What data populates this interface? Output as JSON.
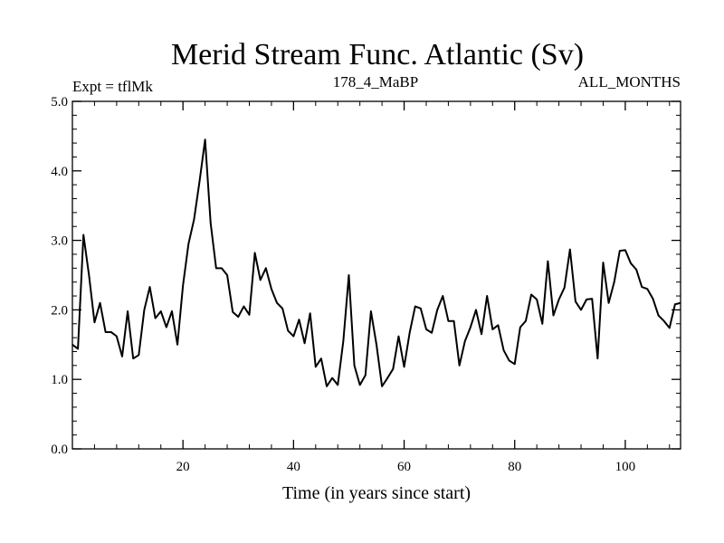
{
  "chart_data": {
    "type": "line",
    "title": "Merid Stream Func. Atlantic (Sv)",
    "subtitle_left": "Expt = tflMk",
    "subtitle_center": "178_4_MaBP",
    "subtitle_right": "ALL_MONTHS",
    "xlabel": "Time (in years since start)",
    "ylabel": "",
    "xlim": [
      0,
      110
    ],
    "ylim": [
      0.0,
      5.0
    ],
    "xticks": [
      20,
      40,
      60,
      80,
      100
    ],
    "xtick_labels": [
      "20",
      "40",
      "60",
      "80",
      "100"
    ],
    "yticks": [
      0.0,
      1.0,
      2.0,
      3.0,
      4.0,
      5.0
    ],
    "ytick_labels": [
      "0.0",
      "1.0",
      "2.0",
      "3.0",
      "4.0",
      "5.0"
    ],
    "grid": false,
    "series": [
      {
        "name": "Merid Stream Func. Atlantic",
        "color": "#000000",
        "x": [
          0,
          1,
          2,
          3,
          4,
          5,
          6,
          7,
          8,
          9,
          10,
          11,
          12,
          13,
          14,
          15,
          16,
          17,
          18,
          19,
          20,
          21,
          22,
          23,
          24,
          25,
          26,
          27,
          28,
          29,
          30,
          31,
          32,
          33,
          34,
          35,
          36,
          37,
          38,
          39,
          40,
          41,
          42,
          43,
          44,
          45,
          46,
          47,
          48,
          49,
          50,
          51,
          52,
          53,
          54,
          55,
          56,
          57,
          58,
          59,
          60,
          61,
          62,
          63,
          64,
          65,
          66,
          67,
          68,
          69,
          70,
          71,
          72,
          73,
          74,
          75,
          76,
          77,
          78,
          79,
          80,
          81,
          82,
          83,
          84,
          85,
          86,
          87,
          88,
          89,
          90,
          91,
          92,
          93,
          94,
          95,
          96,
          97,
          98,
          99,
          100,
          101,
          102,
          103,
          104,
          105,
          106,
          107,
          108,
          109,
          110
        ],
        "values": [
          1.5,
          1.44,
          3.08,
          2.5,
          1.82,
          2.1,
          1.68,
          1.68,
          1.62,
          1.33,
          1.98,
          1.3,
          1.35,
          2.0,
          2.33,
          1.88,
          1.98,
          1.75,
          1.98,
          1.5,
          2.35,
          2.95,
          3.3,
          3.85,
          4.45,
          3.25,
          2.6,
          2.6,
          2.5,
          1.97,
          1.9,
          2.05,
          1.93,
          2.82,
          2.43,
          2.6,
          2.3,
          2.1,
          2.02,
          1.7,
          1.62,
          1.86,
          1.52,
          1.95,
          1.18,
          1.3,
          0.9,
          1.02,
          0.92,
          1.55,
          2.5,
          1.2,
          0.92,
          1.06,
          1.98,
          1.5,
          0.9,
          1.02,
          1.15,
          1.62,
          1.18,
          1.67,
          2.05,
          2.02,
          1.72,
          1.67,
          2.0,
          2.2,
          1.84,
          1.84,
          1.2,
          1.55,
          1.75,
          2.0,
          1.65,
          2.2,
          1.72,
          1.78,
          1.42,
          1.27,
          1.22,
          1.75,
          1.84,
          2.22,
          2.15,
          1.8,
          2.7,
          1.92,
          2.15,
          2.32,
          2.87,
          2.12,
          2.0,
          2.15,
          2.16,
          1.3,
          2.68,
          2.1,
          2.4,
          2.85,
          2.86,
          2.67,
          2.58,
          2.33,
          2.3,
          2.16,
          1.92,
          1.84,
          1.74,
          2.08,
          2.1
        ]
      }
    ]
  }
}
